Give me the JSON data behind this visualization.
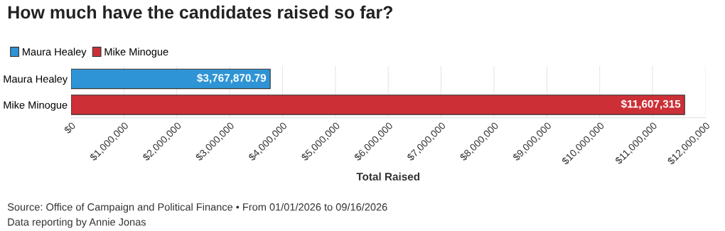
{
  "chart_data": {
    "type": "bar",
    "orientation": "horizontal",
    "title": "How much have the candidates raised so far?",
    "xlabel": "Total Raised",
    "categories": [
      "Maura Healey",
      "Mike Minogue"
    ],
    "series": [
      {
        "name": "Maura Healey",
        "color": "#2f94d6",
        "values": [
          3767870.79,
          null
        ],
        "value_labels": [
          "$3,767,870.79",
          null
        ]
      },
      {
        "name": "Mike Minogue",
        "color": "#cc2f36",
        "values": [
          null,
          11607315
        ],
        "value_labels": [
          null,
          "$11,607,315"
        ]
      }
    ],
    "xlim": [
      0,
      12000000
    ],
    "xticks": [
      {
        "value": 0,
        "label": "$0"
      },
      {
        "value": 1000000,
        "label": "$1,000,000"
      },
      {
        "value": 2000000,
        "label": "$2,000,000"
      },
      {
        "value": 3000000,
        "label": "$3,000,000"
      },
      {
        "value": 4000000,
        "label": "$4,000,000"
      },
      {
        "value": 5000000,
        "label": "$5,000,000"
      },
      {
        "value": 6000000,
        "label": "$6,000,000"
      },
      {
        "value": 7000000,
        "label": "$7,000,000"
      },
      {
        "value": 8000000,
        "label": "$8,000,000"
      },
      {
        "value": 9000000,
        "label": "$9,000,000"
      },
      {
        "value": 10000000,
        "label": "$10,000,000"
      },
      {
        "value": 11000000,
        "label": "$11,000,000"
      },
      {
        "value": 12000000,
        "label": "$12,000,000"
      }
    ],
    "grid": "x",
    "legend": "top left",
    "annotations": [
      "Source: Office of Campaign and Political Finance • From 01/01/2026 to 09/16/2026",
      "Data reporting by Annie Jonas"
    ]
  }
}
